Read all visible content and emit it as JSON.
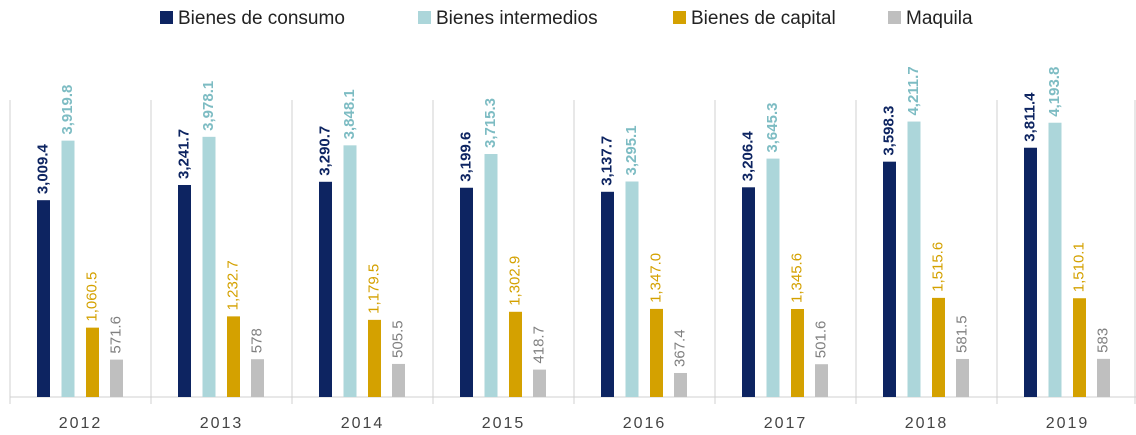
{
  "chart_data": {
    "type": "bar",
    "categories": [
      "2012",
      "2013",
      "2014",
      "2015",
      "2016",
      "2017",
      "2018",
      "2019"
    ],
    "series": [
      {
        "name": "Bienes de consumo",
        "color": "#0d2461",
        "label_color": "#0d2461",
        "values": [
          3009.4,
          3241.7,
          3290.7,
          3199.6,
          3137.7,
          3206.4,
          3598.3,
          3811.4
        ],
        "value_labels": [
          "3,009.4",
          "3,241.7",
          "3,290.7",
          "3,199.6",
          "3,137.7",
          "3,206.4",
          "3,598.3",
          "3,811.4"
        ]
      },
      {
        "name": "Bienes intermedios",
        "color": "#acd6da",
        "label_color": "#7dbcc3",
        "values": [
          3919.8,
          3978.1,
          3848.1,
          3715.3,
          3295.1,
          3645.3,
          4211.7,
          4193.8
        ],
        "value_labels": [
          "3,919.8",
          "3,978.1",
          "3,848.1",
          "3,715.3",
          "3,295.1",
          "3,645.3",
          "4,211.7",
          "4,193.8"
        ]
      },
      {
        "name": "Bienes de capital",
        "color": "#d4a100",
        "label_color": "#d4a100",
        "values": [
          1060.5,
          1232.7,
          1179.5,
          1302.9,
          1347.0,
          1345.6,
          1515.6,
          1510.1
        ],
        "value_labels": [
          "1,060.5",
          "1,232.7",
          "1,179.5",
          "1,302.9",
          "1,347.0",
          "1,345.6",
          "1,515.6",
          "1,510.1"
        ]
      },
      {
        "name": "Maquila",
        "color": "#bfbfbf",
        "label_color": "#808080",
        "values": [
          571.6,
          578.0,
          505.5,
          418.7,
          367.4,
          501.6,
          581.5,
          583.0
        ]
      }
    ],
    "ylim": [
      0,
      5000
    ]
  }
}
